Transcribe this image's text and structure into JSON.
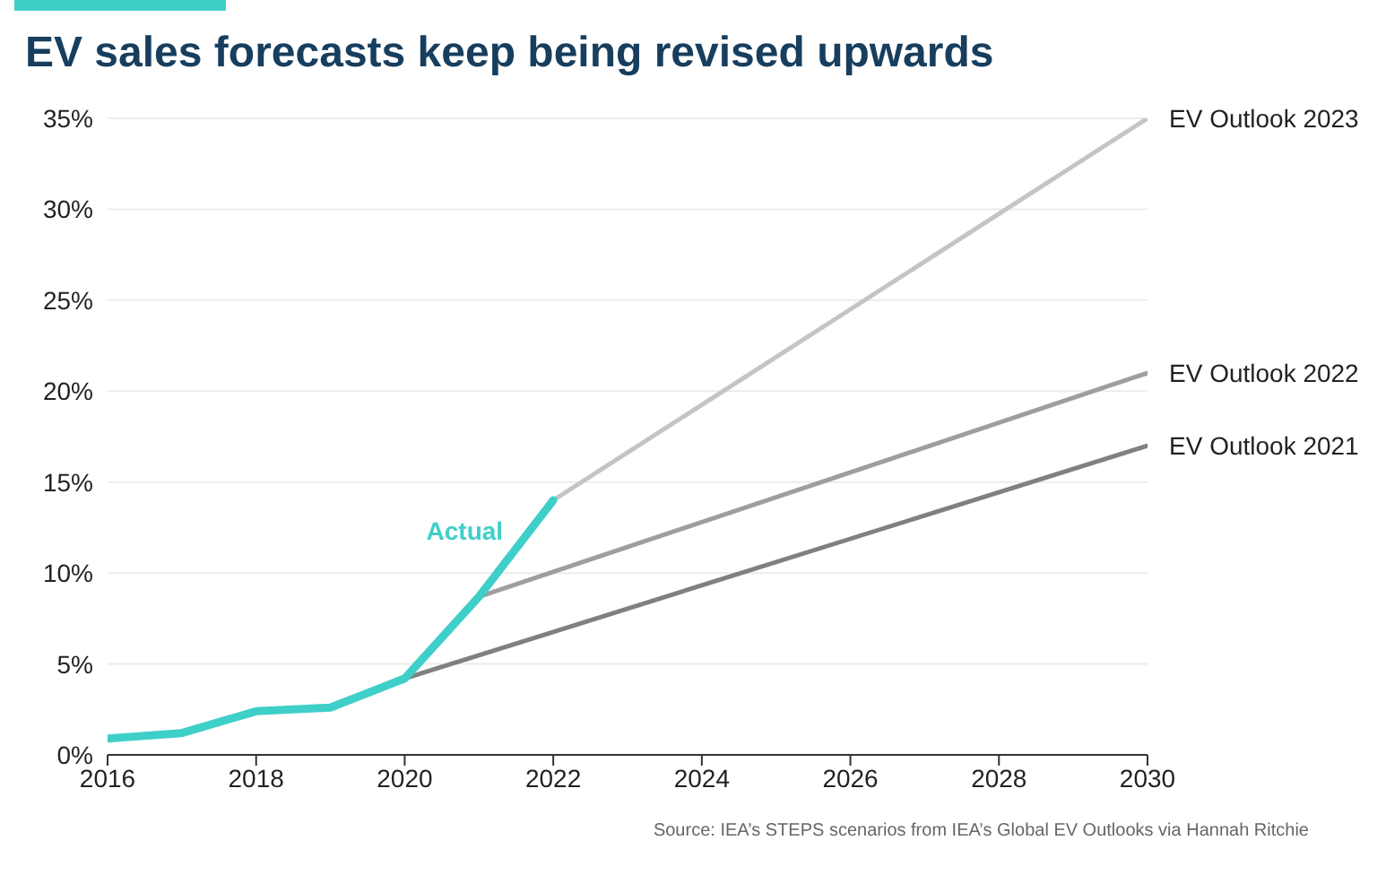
{
  "chart_data": {
    "type": "line",
    "title": "EV sales forecasts keep being revised upwards",
    "annotations": [
      "Source: IEA’s STEPS scenarios from IEA’s Global EV Outlooks via Hannah Ritchie"
    ],
    "series": [
      {
        "name": "Actual",
        "color": "#3fcfc9",
        "x": [
          2016,
          2017,
          2018,
          2019,
          2020,
          2021,
          2022
        ],
        "values": [
          0.9,
          1.2,
          2.4,
          2.6,
          4.2,
          8.7,
          14
        ]
      },
      {
        "name": "EV Outlook 2023",
        "color": "#c4c4c4",
        "x": [
          2022,
          2030
        ],
        "values": [
          14,
          35
        ]
      },
      {
        "name": "EV Outlook 2022",
        "color": "#9e9e9e",
        "x": [
          2021,
          2030
        ],
        "values": [
          8.7,
          21
        ]
      },
      {
        "name": "EV Outlook 2021",
        "color": "#808080",
        "x": [
          2020,
          2030
        ],
        "values": [
          4.2,
          17
        ]
      }
    ],
    "xlim": [
      2016,
      2030
    ],
    "xticks": [
      2016,
      2018,
      2020,
      2022,
      2024,
      2026,
      2028,
      2030
    ],
    "ylim": [
      0,
      35
    ],
    "yticks": [
      {
        "value": 0,
        "label": "0%"
      },
      {
        "value": 5,
        "label": "5%"
      },
      {
        "value": 10,
        "label": "10%"
      },
      {
        "value": 15,
        "label": "15%"
      },
      {
        "value": 20,
        "label": "20%"
      },
      {
        "value": 25,
        "label": "25%"
      },
      {
        "value": 30,
        "label": "30%"
      },
      {
        "value": 35,
        "label": "35%"
      }
    ],
    "grid": "y",
    "legend": false
  }
}
